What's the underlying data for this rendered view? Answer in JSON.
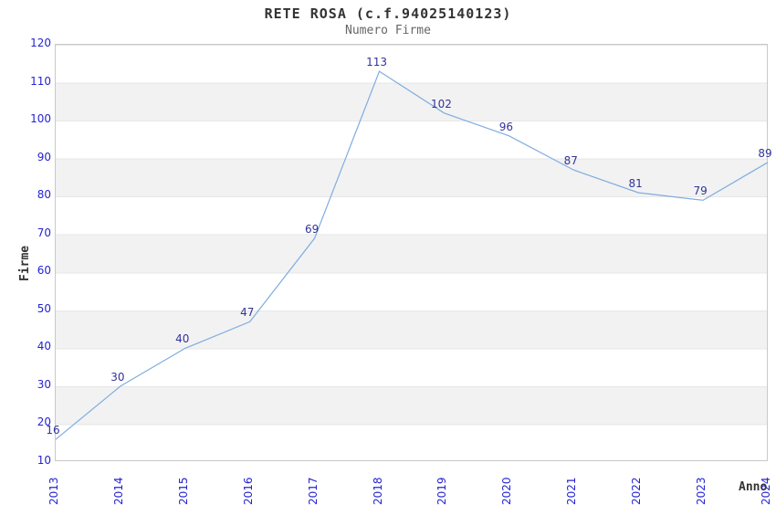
{
  "header": {
    "title": "RETE ROSA (c.f.94025140123)",
    "subtitle": "Numero Firme"
  },
  "chart_data": {
    "type": "line",
    "title": "RETE ROSA (c.f.94025140123)",
    "subtitle": "Numero Firme",
    "xlabel": "Anno",
    "ylabel": "Firme",
    "categories": [
      2013,
      2014,
      2015,
      2016,
      2017,
      2018,
      2019,
      2020,
      2021,
      2022,
      2023,
      2024
    ],
    "series": [
      {
        "name": "Numero Firme",
        "values": [
          16,
          30,
          40,
          47,
          69,
          113,
          102,
          96,
          87,
          81,
          79,
          89
        ]
      }
    ],
    "data_labels_visible": true,
    "ylim": [
      10,
      120
    ],
    "ytick_step": 10,
    "yticks": [
      10,
      20,
      30,
      40,
      50,
      60,
      70,
      80,
      90,
      100,
      110,
      120
    ],
    "grid": "horizontal-alternating-bands",
    "legend_position": "none",
    "colors": {
      "line": "#7eade0",
      "tick_label": "#2424d0",
      "data_label": "#333399",
      "band_gray": "#f2f2f2",
      "band_white": "#ffffff",
      "plot_border": "#c9c9c9",
      "title": "#333333",
      "subtitle": "#666666",
      "axis_label": "#333333",
      "background": "#ffffff"
    }
  }
}
